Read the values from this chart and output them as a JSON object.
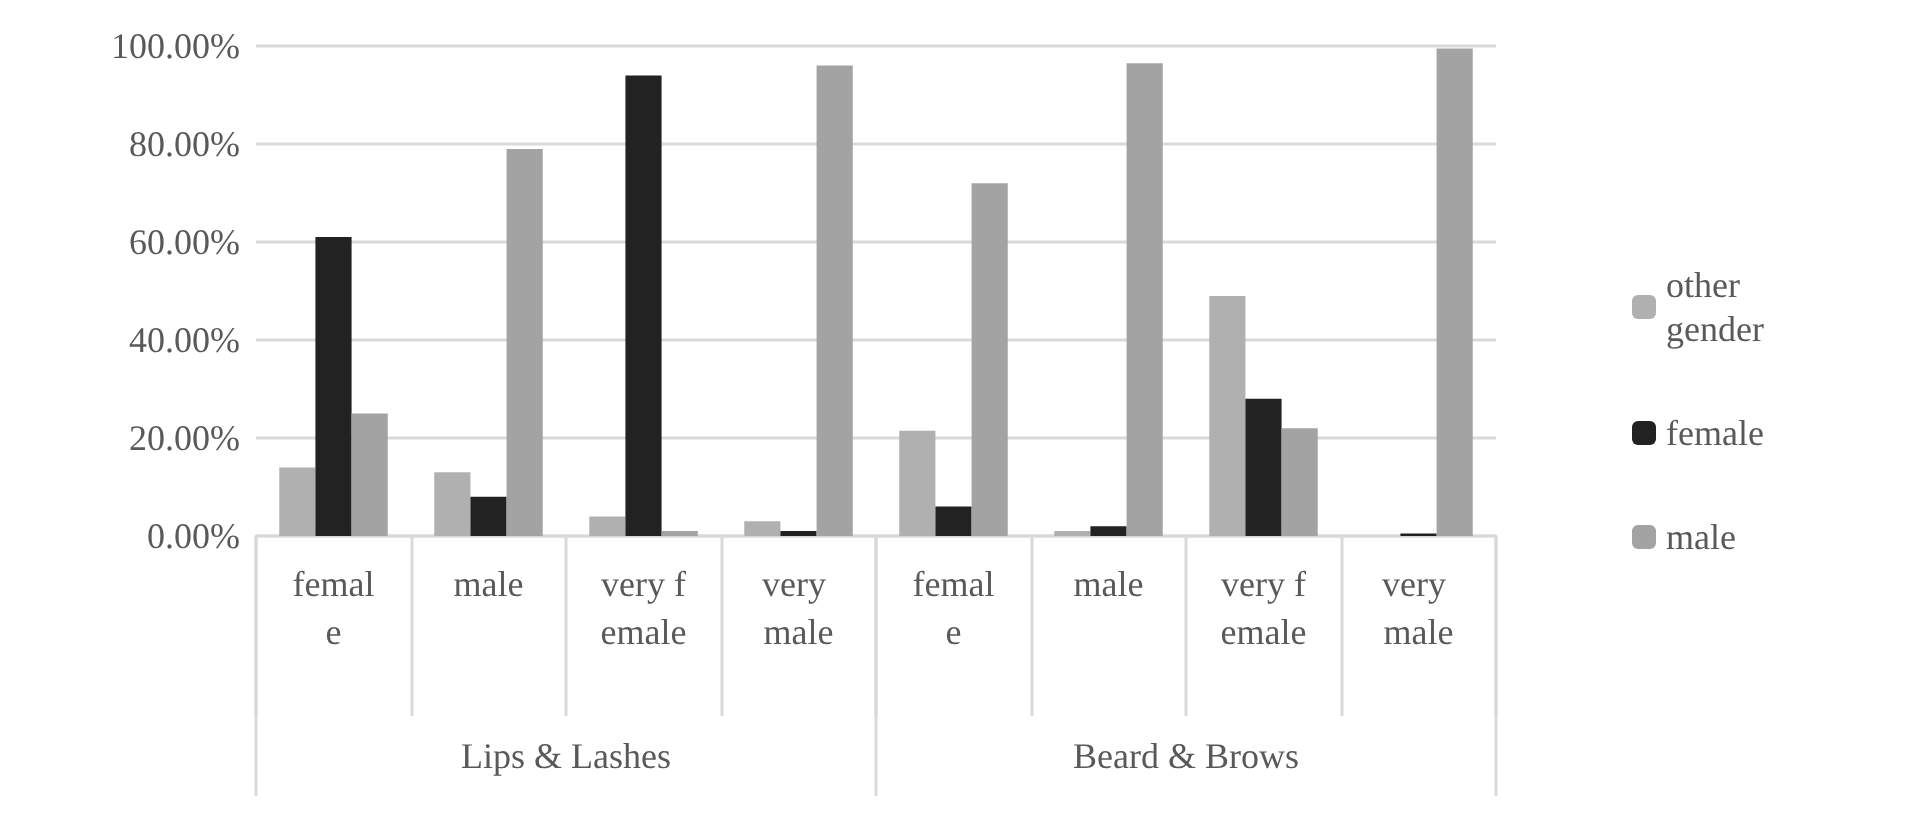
{
  "chart_data": {
    "type": "bar",
    "categories": [
      "female",
      "male",
      "very female",
      "very male",
      "female",
      "male",
      "very female",
      "very male"
    ],
    "series": [
      {
        "name": "other gender",
        "color": "#b0b0b0",
        "values": [
          14,
          13,
          4,
          3,
          21.5,
          1,
          49,
          0
        ]
      },
      {
        "name": "female",
        "color": "#222222",
        "values": [
          61,
          8,
          94,
          1,
          6,
          2,
          28,
          0.5
        ]
      },
      {
        "name": "male",
        "color": "#a3a3a3",
        "values": [
          25,
          79,
          1,
          96,
          72,
          96.5,
          22,
          99.5
        ]
      }
    ],
    "ylim": [
      0,
      100
    ],
    "yticks": [
      {
        "value": 0,
        "label": "0.00%"
      },
      {
        "value": 20,
        "label": "20.00%"
      },
      {
        "value": 40,
        "label": "40.00%"
      },
      {
        "value": 60,
        "label": "60.00%"
      },
      {
        "value": 80,
        "label": "80.00%"
      },
      {
        "value": 100,
        "label": "100.00%"
      }
    ],
    "annotations": [
      "Lips & Lashes",
      "Beard & Brows"
    ],
    "grid": "y",
    "legend": "right"
  }
}
